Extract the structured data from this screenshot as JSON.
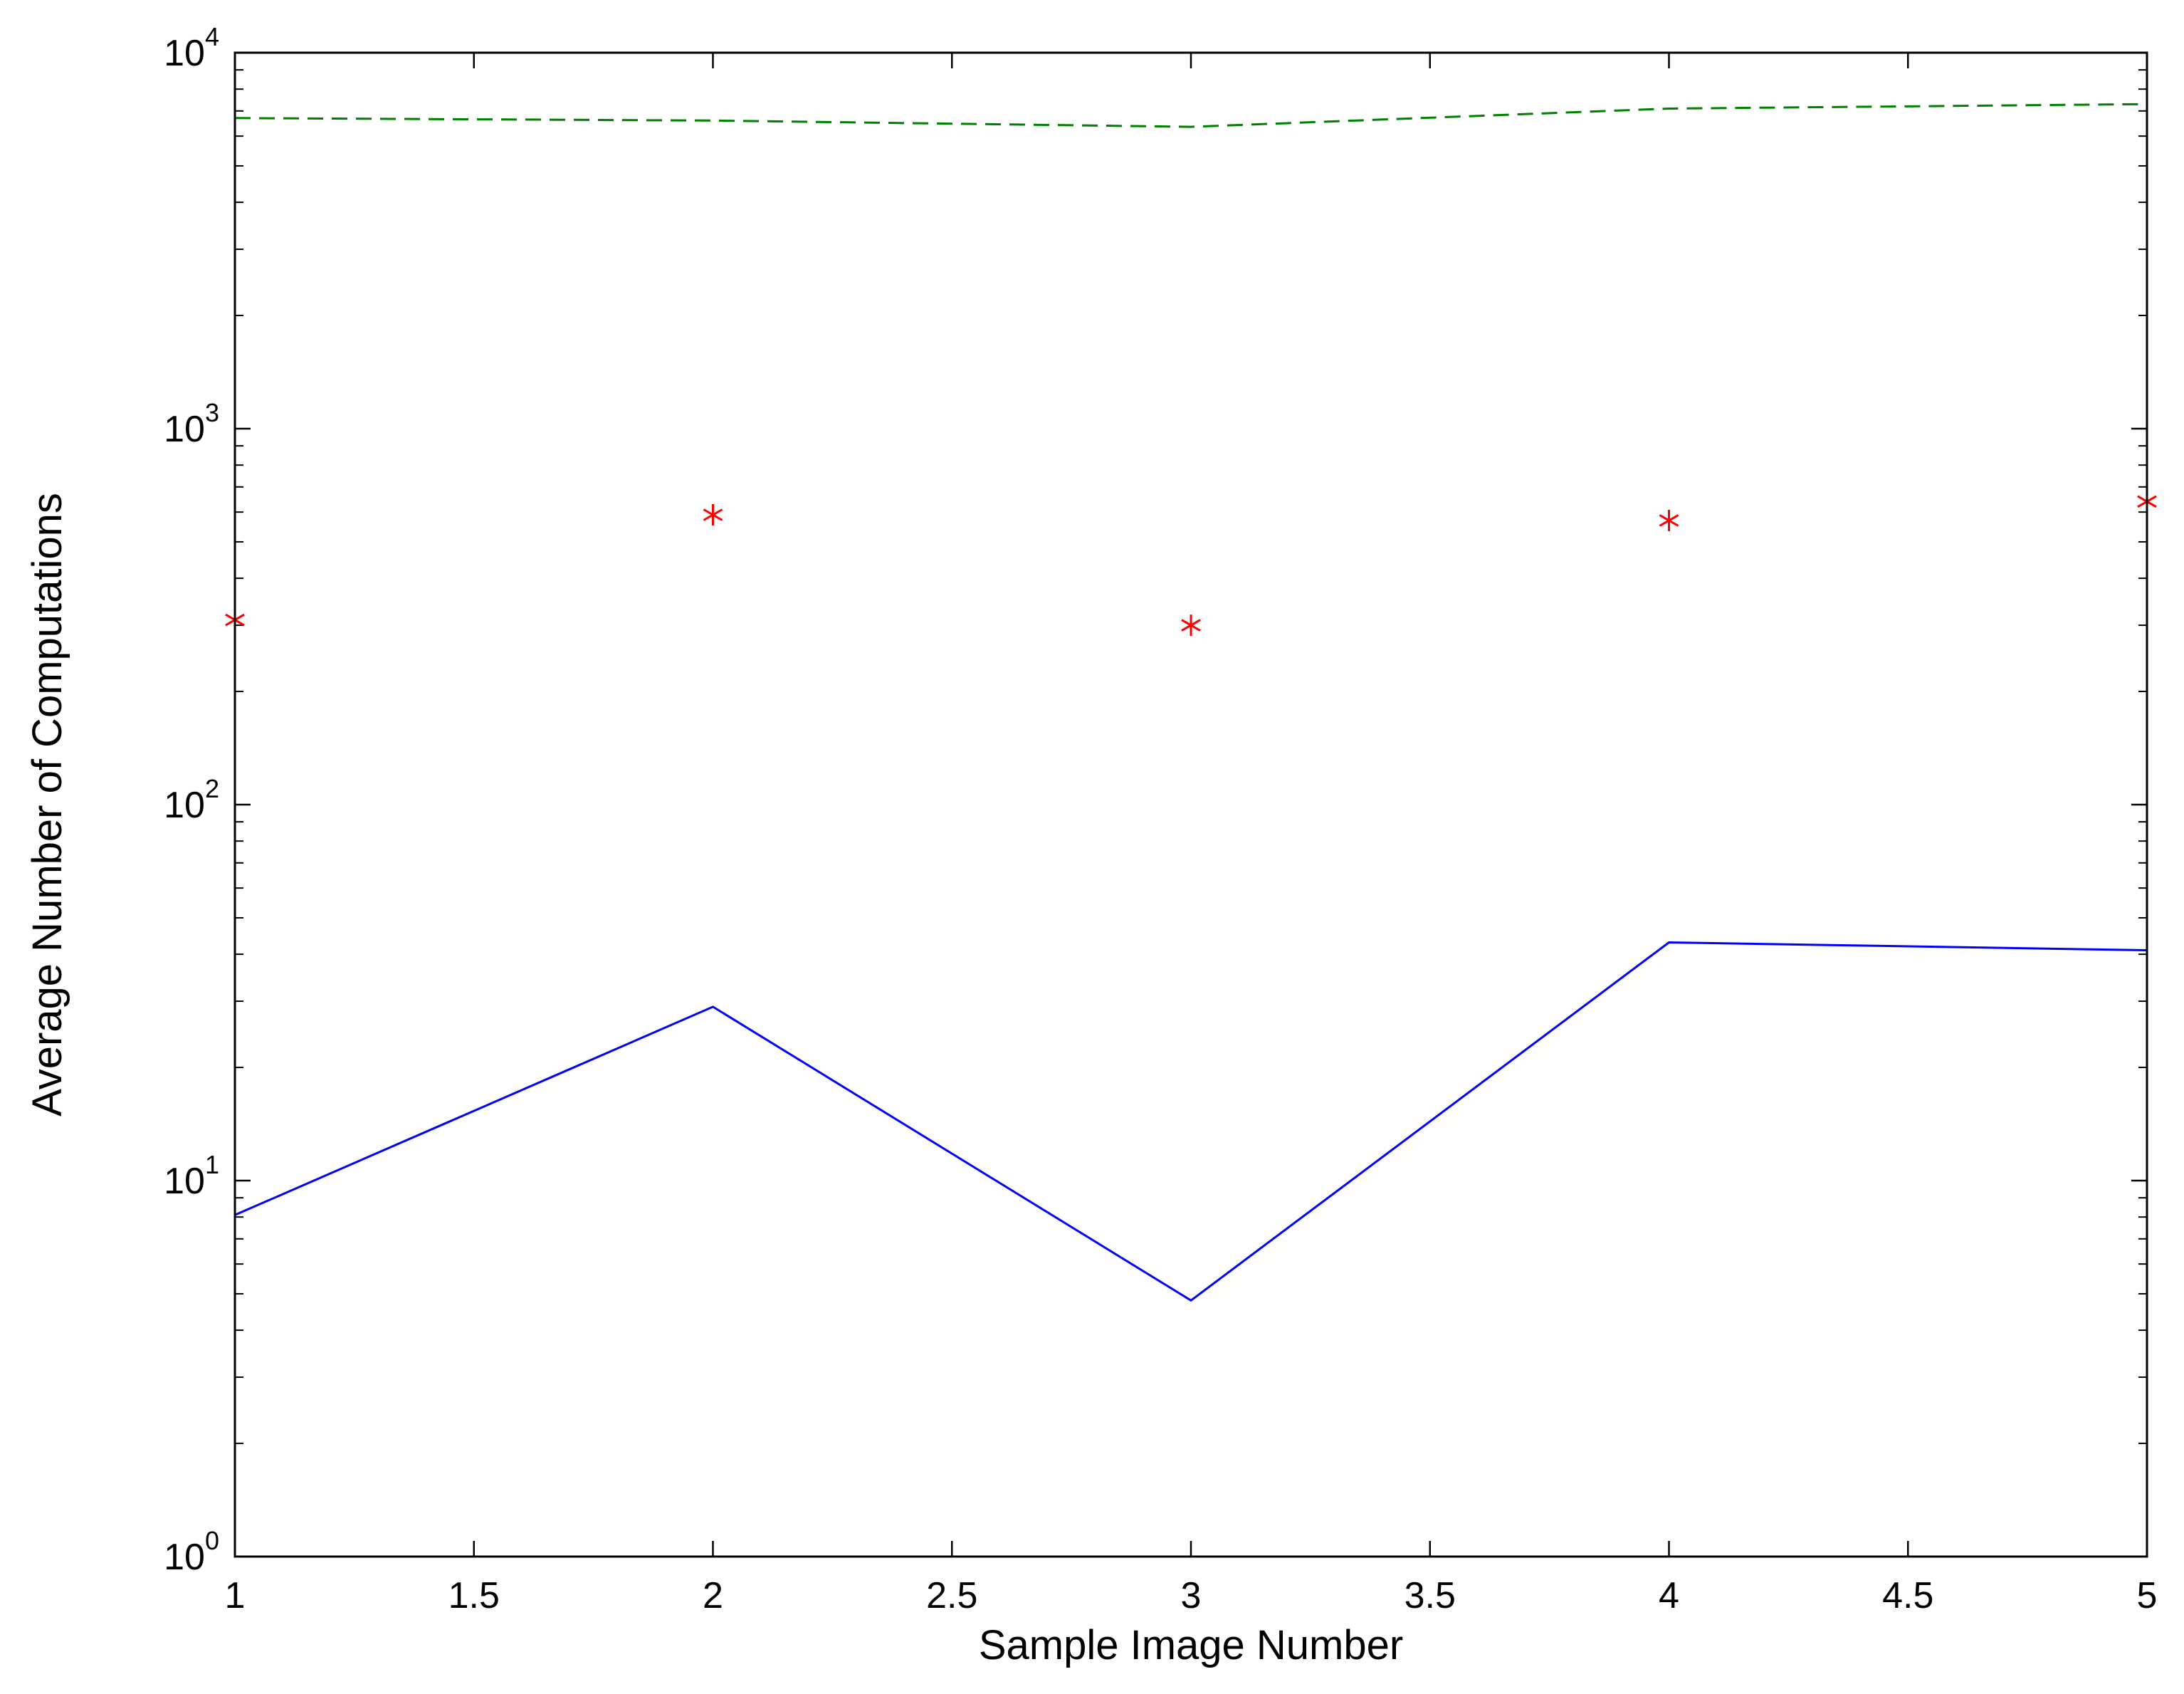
{
  "chart_data": {
    "type": "line",
    "title": "",
    "xlabel": "Sample Image Number",
    "ylabel": "Average Number of Computations",
    "xlim": [
      1,
      5
    ],
    "ylim": [
      1,
      10000
    ],
    "yscale": "log",
    "grid": false,
    "x_ticks": [
      "1",
      "1.5",
      "2",
      "2.5",
      "3",
      "3.5",
      "4",
      "4.5",
      "5"
    ],
    "y_ticks": [
      {
        "base": "10",
        "exp": "0"
      },
      {
        "base": "10",
        "exp": "1"
      },
      {
        "base": "10",
        "exp": "2"
      },
      {
        "base": "10",
        "exp": "3"
      },
      {
        "base": "10",
        "exp": "4"
      }
    ],
    "x": [
      1,
      2,
      3,
      4,
      5
    ],
    "series": [
      {
        "style": "dashed-line",
        "color": "#008000",
        "values": [
          6700,
          6600,
          6350,
          7100,
          7300
        ]
      },
      {
        "style": "markers-star",
        "color": "#ff0000",
        "values": [
          310,
          590,
          300,
          570,
          640
        ]
      },
      {
        "style": "solid-line",
        "color": "#0000ff",
        "values": [
          8.1,
          29,
          4.8,
          43,
          41
        ]
      }
    ]
  }
}
